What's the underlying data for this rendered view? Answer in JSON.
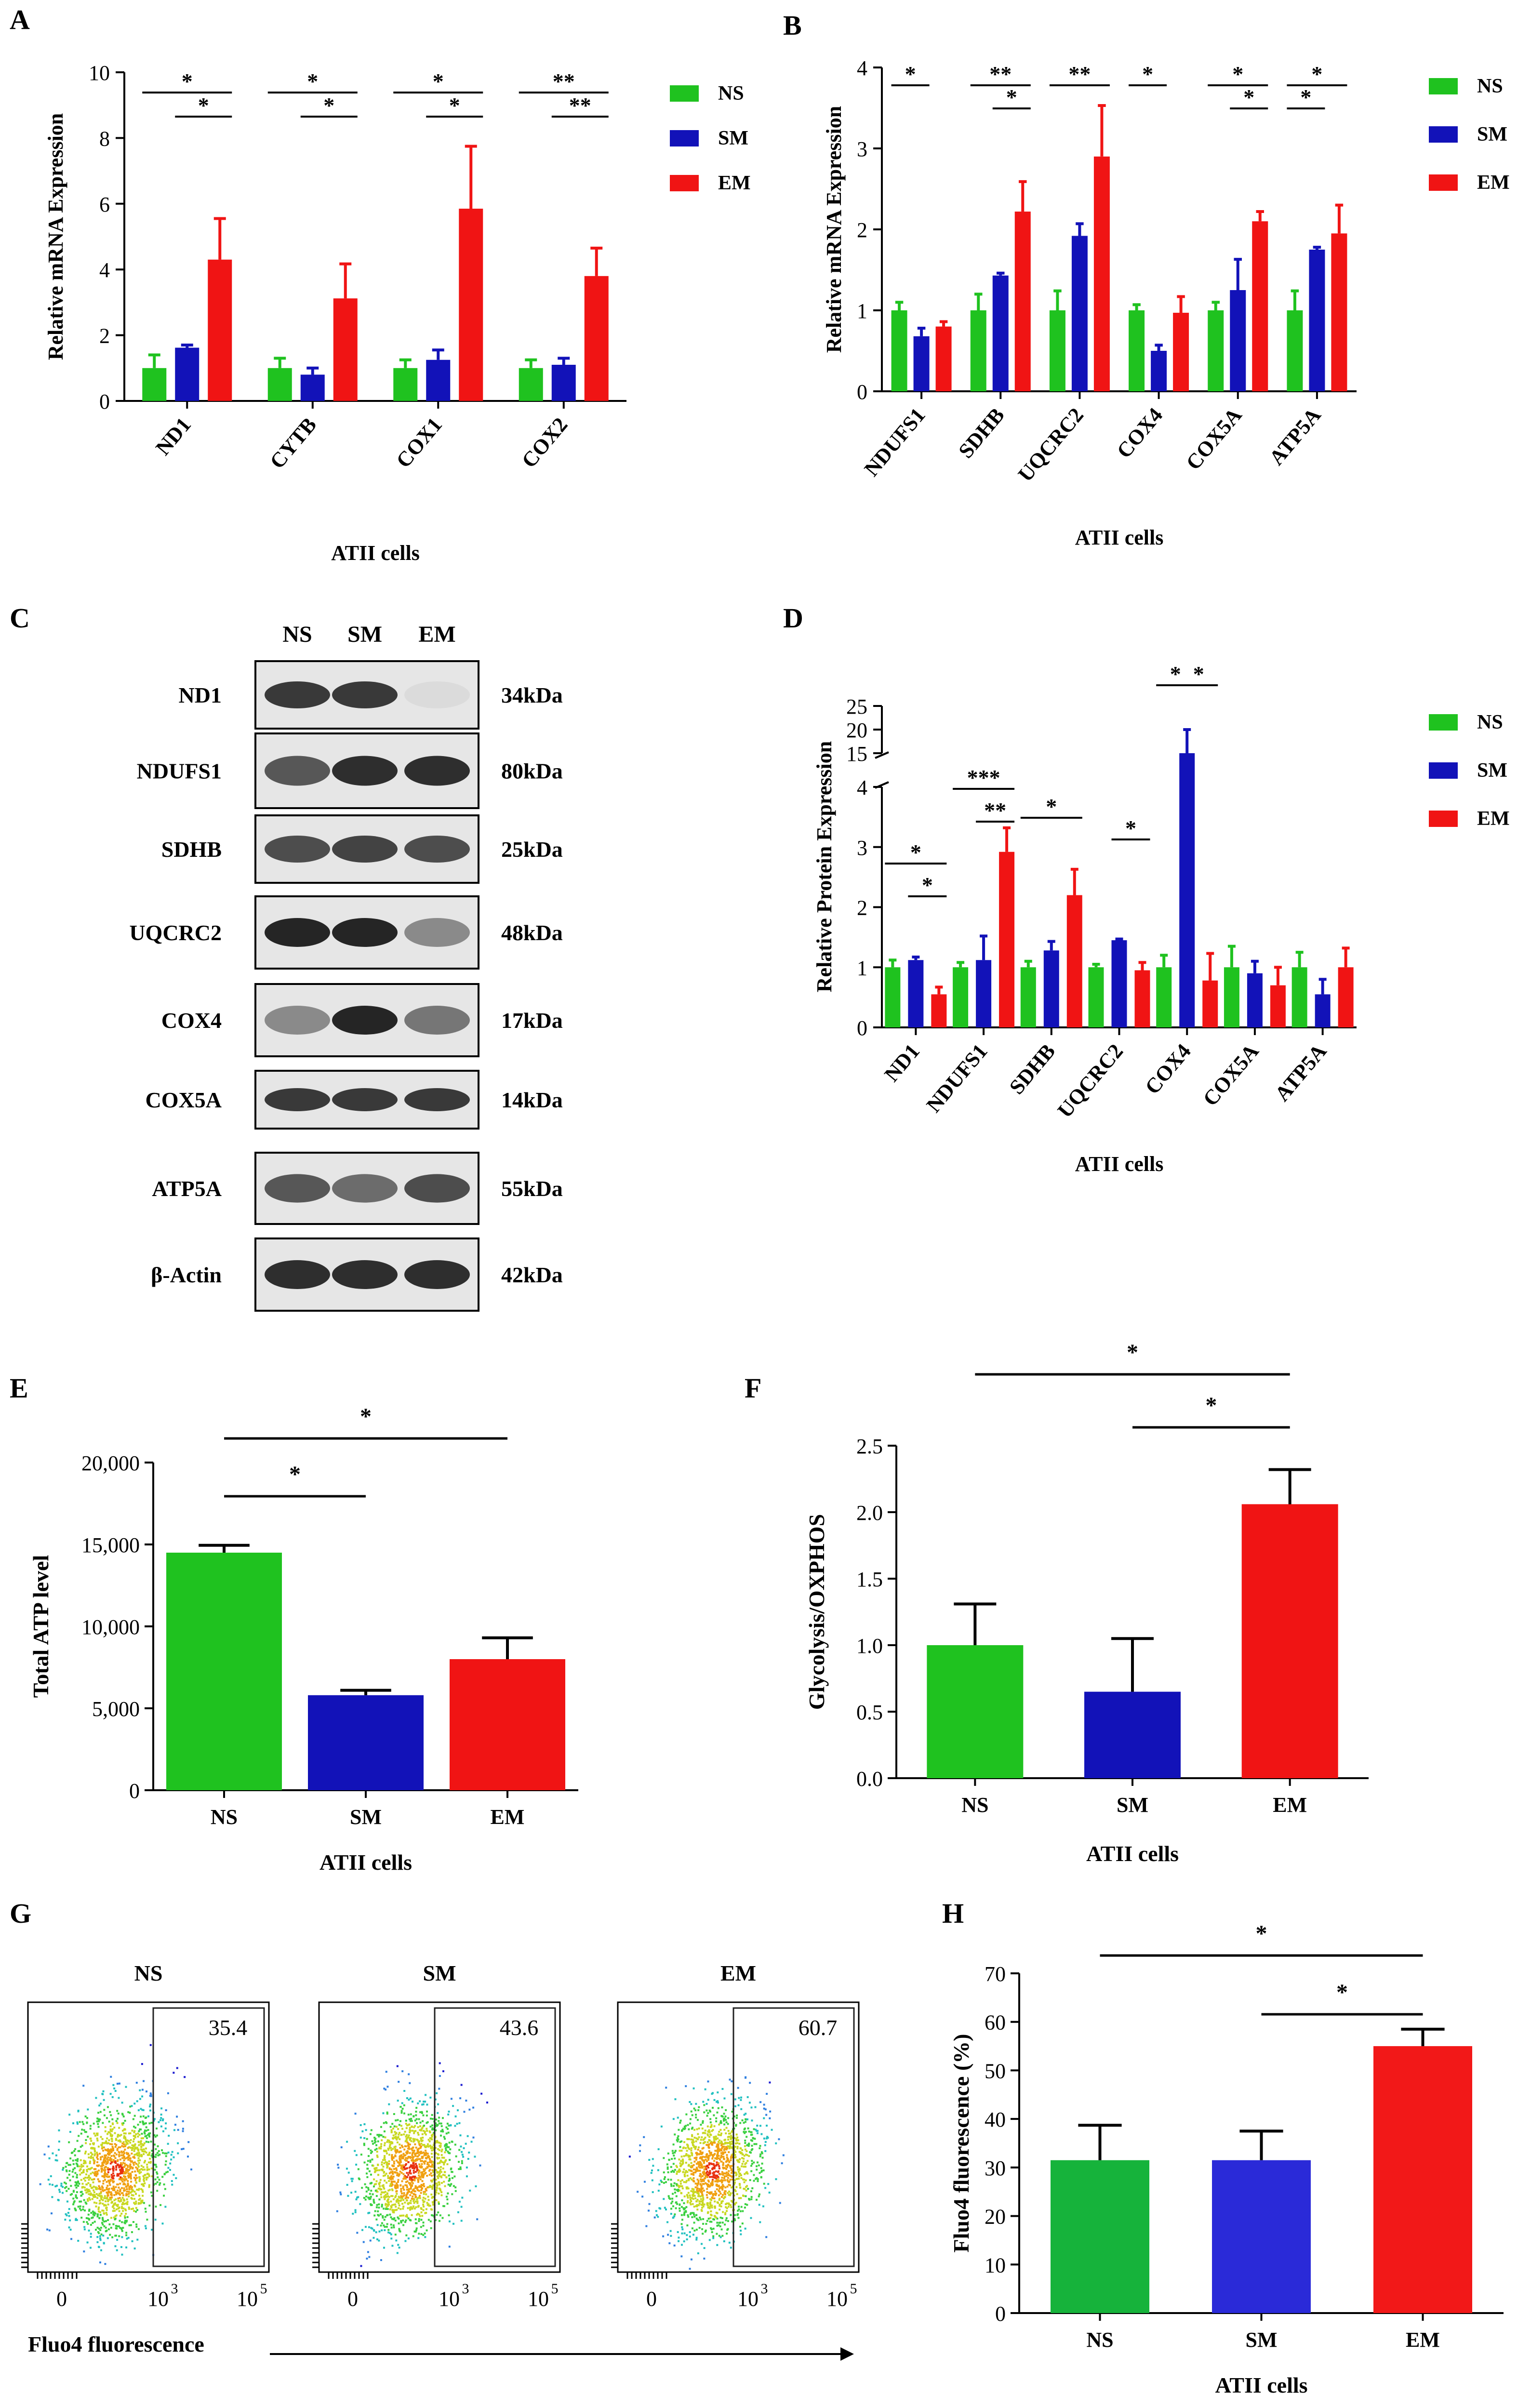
{
  "colors": {
    "NS": "#1fc21f",
    "SM": "#1212b8",
    "EM": "#f01414",
    "H_NS": "#16b33b",
    "H_SM": "#2a2ad8",
    "H_EM": "#f21818",
    "axis": "#000000"
  },
  "chart_data": [
    {
      "panel": "A",
      "type": "bar",
      "ylabel": "Relative mRNA Expression",
      "xlabel": "ATII cells",
      "ylim": [
        0,
        10
      ],
      "yticks": [
        0,
        2,
        4,
        6,
        8,
        10
      ],
      "categories": [
        "ND1",
        "CYTB",
        "COX1",
        "COX2"
      ],
      "series": [
        {
          "name": "NS",
          "values": [
            1.0,
            1.0,
            1.0,
            1.0
          ],
          "errors": [
            0.4,
            0.3,
            0.25,
            0.25
          ]
        },
        {
          "name": "SM",
          "values": [
            1.62,
            0.8,
            1.25,
            1.1
          ],
          "errors": [
            0.08,
            0.2,
            0.3,
            0.2
          ]
        },
        {
          "name": "EM",
          "values": [
            4.3,
            3.12,
            5.85,
            3.8
          ],
          "errors": [
            1.25,
            1.05,
            1.9,
            0.85
          ]
        }
      ],
      "annotations": [
        {
          "cat": 0,
          "from": 0,
          "to": 2,
          "level": 1,
          "text": "*"
        },
        {
          "cat": 0,
          "from": 1,
          "to": 2,
          "level": 0,
          "text": "*"
        },
        {
          "cat": 1,
          "from": 0,
          "to": 2,
          "level": 1,
          "text": "*"
        },
        {
          "cat": 1,
          "from": 1,
          "to": 2,
          "level": 0,
          "text": "*"
        },
        {
          "cat": 2,
          "from": 0,
          "to": 2,
          "level": 1,
          "text": "*"
        },
        {
          "cat": 2,
          "from": 1,
          "to": 2,
          "level": 0,
          "text": "*"
        },
        {
          "cat": 3,
          "from": 0,
          "to": 2,
          "level": 1,
          "text": "**"
        },
        {
          "cat": 3,
          "from": 1,
          "to": 2,
          "level": 0,
          "text": "**"
        }
      ]
    },
    {
      "panel": "B",
      "type": "bar",
      "ylabel": "Relative mRNA Expression",
      "xlabel": "ATII cells",
      "ylim": [
        0,
        4
      ],
      "yticks": [
        0,
        1,
        2,
        3,
        4
      ],
      "categories": [
        "NDUFS1",
        "SDHB",
        "UQCRC2",
        "COX4",
        "COX5A",
        "ATP5A"
      ],
      "series": [
        {
          "name": "NS",
          "values": [
            1.0,
            1.0,
            1.0,
            1.0,
            1.0,
            1.0
          ],
          "errors": [
            0.1,
            0.2,
            0.24,
            0.07,
            0.1,
            0.24
          ]
        },
        {
          "name": "SM",
          "values": [
            0.68,
            1.43,
            1.92,
            0.5,
            1.25,
            1.75
          ],
          "errors": [
            0.1,
            0.03,
            0.15,
            0.07,
            0.38,
            0.03
          ]
        },
        {
          "name": "EM",
          "values": [
            0.8,
            2.22,
            2.9,
            0.97,
            2.1,
            1.95
          ],
          "errors": [
            0.06,
            0.37,
            0.63,
            0.2,
            0.12,
            0.35
          ]
        }
      ],
      "annotations": [
        {
          "cat": 0,
          "from": 0,
          "to": 1,
          "level": 1,
          "text": "*"
        },
        {
          "cat": 1,
          "from": 0,
          "to": 2,
          "level": 1,
          "text": "**"
        },
        {
          "cat": 1,
          "from": 1,
          "to": 2,
          "level": 0,
          "text": "*"
        },
        {
          "cat": 2,
          "from": 0,
          "to": 2,
          "level": 1,
          "text": "**"
        },
        {
          "cat": 3,
          "from": 0,
          "to": 1,
          "level": 1,
          "text": "*"
        },
        {
          "cat": 4,
          "from": 0,
          "to": 2,
          "level": 1,
          "text": "*"
        },
        {
          "cat": 4,
          "from": 1,
          "to": 2,
          "level": 0,
          "text": "*"
        },
        {
          "cat": 5,
          "from": 0,
          "to": 2,
          "level": 1,
          "text": "*"
        },
        {
          "cat": 5,
          "from": 0,
          "to": 1,
          "level": 0,
          "text": "*"
        }
      ]
    },
    {
      "panel": "D",
      "type": "bar",
      "ylabel": "Relative Protein Expression",
      "xlabel": "ATII cells",
      "ylim": [
        0,
        25
      ],
      "axis_break": [
        4,
        15
      ],
      "yticks": [
        0,
        1,
        2,
        3,
        4,
        15,
        20,
        25
      ],
      "categories": [
        "ND1",
        "NDUFS1",
        "SDHB",
        "UQCRC2",
        "COX4",
        "COX5A",
        "ATP5A"
      ],
      "series": [
        {
          "name": "NS",
          "values": [
            1.0,
            1.0,
            1.0,
            1.0,
            1.0,
            1.0,
            1.0
          ],
          "errors": [
            0.12,
            0.08,
            0.1,
            0.05,
            0.2,
            0.35,
            0.25
          ]
        },
        {
          "name": "SM",
          "values": [
            1.12,
            1.12,
            1.28,
            1.45,
            15.0,
            0.9,
            0.55
          ],
          "errors": [
            0.05,
            0.4,
            0.15,
            0.02,
            5.0,
            0.2,
            0.25
          ]
        },
        {
          "name": "EM",
          "values": [
            0.55,
            2.92,
            2.2,
            0.95,
            0.78,
            0.7,
            1.0
          ],
          "errors": [
            0.12,
            0.4,
            0.43,
            0.13,
            0.45,
            0.3,
            0.32
          ]
        }
      ],
      "annotations": [
        {
          "cat": 0,
          "from": 0,
          "to": 2,
          "level": 1,
          "text": "*"
        },
        {
          "cat": 0,
          "from": 1,
          "to": 2,
          "level": 0,
          "text": "*"
        },
        {
          "cat": 1,
          "from": 0,
          "to": 2,
          "level": 1,
          "text": "***"
        },
        {
          "cat": 1,
          "from": 1,
          "to": 2,
          "level": 0,
          "text": "**"
        },
        {
          "cat": 2,
          "from": 0,
          "to": 2,
          "level": 1,
          "text": "*"
        },
        {
          "cat": 3,
          "from": 1,
          "to": 2,
          "level": 1,
          "text": "*"
        },
        {
          "cat": 4,
          "from": 0,
          "to": 1,
          "level": 1,
          "text": "*"
        },
        {
          "cat": 4,
          "from": 1,
          "to": 2,
          "level": 1,
          "text": "*"
        }
      ]
    },
    {
      "panel": "E",
      "type": "bar",
      "ylabel": "Total ATP level",
      "xlabel": "ATII cells",
      "ylim": [
        0,
        20000
      ],
      "yticks": [
        0,
        5000,
        10000,
        15000,
        20000
      ],
      "ytick_labels": [
        "0",
        "5,000",
        "10,000",
        "15,000",
        "20,000"
      ],
      "categories": [
        "NS",
        "SM",
        "EM"
      ],
      "values": [
        14500,
        5800,
        8000
      ],
      "errors": [
        450,
        300,
        1300
      ],
      "annotations": [
        {
          "from": 0,
          "to": 1,
          "level": 0,
          "text": "*"
        },
        {
          "from": 0,
          "to": 2,
          "level": 1,
          "text": "*"
        }
      ]
    },
    {
      "panel": "F",
      "type": "bar",
      "ylabel": "Glycolysis/OXPHOS",
      "xlabel": "ATII cells",
      "ylim": [
        0,
        2.5
      ],
      "yticks": [
        0,
        0.5,
        1.0,
        1.5,
        2.0,
        2.5
      ],
      "ytick_labels": [
        "0.0",
        "0.5",
        "1.0",
        "1.5",
        "2.0",
        "2.5"
      ],
      "categories": [
        "NS",
        "SM",
        "EM"
      ],
      "values": [
        1.0,
        0.65,
        2.06
      ],
      "errors": [
        0.31,
        0.4,
        0.26
      ],
      "annotations": [
        {
          "from": 1,
          "to": 2,
          "level": 0,
          "text": "*"
        },
        {
          "from": 0,
          "to": 2,
          "level": 1,
          "text": "*"
        }
      ]
    },
    {
      "panel": "G",
      "type": "scatter",
      "xlabel": "Fluo4 fluorescence",
      "xtick_labels": [
        "0",
        "10",
        "10"
      ],
      "xtick_exponents": [
        "",
        "3",
        "5"
      ],
      "plots": [
        {
          "title": "NS",
          "gate_percent": "35.4"
        },
        {
          "title": "SM",
          "gate_percent": "43.6"
        },
        {
          "title": "EM",
          "gate_percent": "60.7"
        }
      ]
    },
    {
      "panel": "H",
      "type": "bar",
      "ylabel": "Fluo4 fluorescence (%)",
      "xlabel": "ATII cells",
      "ylim": [
        0,
        70
      ],
      "yticks": [
        0,
        10,
        20,
        30,
        40,
        50,
        60,
        70
      ],
      "categories": [
        "NS",
        "SM",
        "EM"
      ],
      "values": [
        31.5,
        31.5,
        55.0
      ],
      "errors": [
        7.2,
        6.0,
        3.5
      ],
      "annotations": [
        {
          "from": 1,
          "to": 2,
          "level": 0,
          "text": "*"
        },
        {
          "from": 0,
          "to": 2,
          "level": 1,
          "text": "*"
        }
      ]
    }
  ],
  "panel_labels": [
    "A",
    "B",
    "C",
    "D",
    "E",
    "F",
    "G",
    "H"
  ],
  "legend": [
    "NS",
    "SM",
    "EM"
  ],
  "western_blot": {
    "panel": "C",
    "lanes": [
      "NS",
      "SM",
      "EM"
    ],
    "rows": [
      {
        "protein": "ND1",
        "size": "34kDa",
        "intensity": [
          0.85,
          0.85,
          0.05
        ]
      },
      {
        "protein": "NDUFS1",
        "size": "80kDa",
        "intensity": [
          0.7,
          0.9,
          0.9
        ]
      },
      {
        "protein": "SDHB",
        "size": "25kDa",
        "intensity": [
          0.75,
          0.8,
          0.75
        ]
      },
      {
        "protein": "UQCRC2",
        "size": "48kDa",
        "intensity": [
          0.95,
          0.95,
          0.45
        ]
      },
      {
        "protein": "COX4",
        "size": "17kDa",
        "intensity": [
          0.45,
          0.95,
          0.55
        ]
      },
      {
        "protein": "COX5A",
        "size": "14kDa",
        "intensity": [
          0.85,
          0.85,
          0.85
        ]
      },
      {
        "protein": "ATP5A",
        "size": "55kDa",
        "intensity": [
          0.7,
          0.6,
          0.75
        ]
      },
      {
        "protein": "β-Actin",
        "size": "42kDa",
        "intensity": [
          0.9,
          0.9,
          0.9
        ]
      }
    ]
  }
}
